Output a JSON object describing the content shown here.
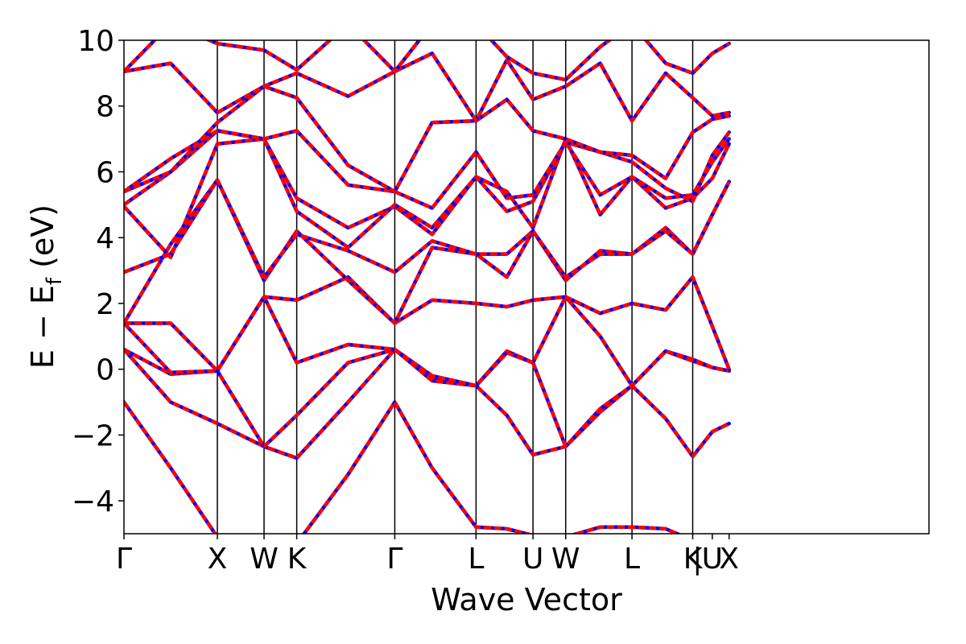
{
  "chart_data": {
    "type": "line",
    "xlabel": "Wave Vector",
    "ylabel": {
      "main": "E − E",
      "subscript": "f",
      "unit": " (eV)"
    },
    "ylim": [
      -5,
      10
    ],
    "y_ticks": [
      -4,
      -2,
      0,
      2,
      4,
      6,
      8,
      10
    ],
    "y_tick_labels": [
      "−4",
      "−2",
      "0",
      "2",
      "4",
      "6",
      "8",
      "10"
    ],
    "xlim": [
      0,
      8.62
    ],
    "x_ticks": [
      {
        "x": 0.0,
        "label": "Γ"
      },
      {
        "x": 1.0,
        "label": "X"
      },
      {
        "x": 1.5,
        "label": "W"
      },
      {
        "x": 1.85,
        "label": "K"
      },
      {
        "x": 2.9,
        "label": "Γ"
      },
      {
        "x": 3.77,
        "label": "L"
      },
      {
        "x": 4.38,
        "label": "U"
      },
      {
        "x": 4.73,
        "label": "W"
      },
      {
        "x": 5.44,
        "label": "L"
      },
      {
        "x": 6.09,
        "label": "K"
      },
      {
        "x": 6.14,
        "label": "|"
      },
      {
        "x": 6.3,
        "label": "U"
      },
      {
        "x": 6.48,
        "label": "X"
      }
    ],
    "high_symmetry_lines": [
      1.0,
      1.5,
      1.85,
      2.9,
      3.77,
      4.38,
      4.73,
      5.44,
      6.09
    ],
    "series_styles": [
      {
        "color": "#0000ff",
        "style": "solid"
      },
      {
        "color": "#ff0000",
        "style": "dashed"
      }
    ],
    "bands": [
      {
        "x": [
          0,
          0.5,
          1.0,
          1.5,
          1.85,
          2.4,
          2.9,
          3.3,
          3.77,
          4.1,
          4.38,
          4.73,
          5.1,
          5.44,
          5.8,
          6.09,
          6.3,
          6.48
        ],
        "y": [
          -1.0,
          -3.0,
          -5.1,
          -6.2,
          -5.3,
          -3.2,
          -1.0,
          -3.0,
          -4.8,
          -4.85,
          -5.05,
          -5.1,
          -4.8,
          -4.8,
          -4.85,
          -5.2,
          -5.3,
          -5.4
        ]
      },
      {
        "x": [
          0,
          0.5,
          1.0,
          1.5,
          1.85,
          2.4,
          2.9,
          3.3,
          3.77,
          4.1,
          4.38,
          4.73,
          5.1,
          5.44,
          5.8,
          6.09,
          6.3,
          6.48
        ],
        "y": [
          0.6,
          -1.0,
          -1.65,
          -2.35,
          -2.7,
          -1.0,
          0.6,
          -0.3,
          -0.5,
          -1.4,
          -2.6,
          -2.35,
          -1.3,
          -0.5,
          -1.5,
          -2.65,
          -1.9,
          -1.65
        ]
      },
      {
        "x": [
          0,
          0.5,
          1.0,
          1.5,
          1.85,
          2.4,
          2.9,
          3.3,
          3.77,
          4.1,
          4.38,
          4.73,
          5.1,
          5.44,
          5.8,
          6.09,
          6.3,
          6.48
        ],
        "y": [
          0.6,
          -0.15,
          -0.05,
          -2.35,
          -1.4,
          0.2,
          0.6,
          -0.35,
          -0.5,
          0.55,
          0.2,
          -2.35,
          -1.2,
          -0.5,
          0.55,
          0.3,
          0.05,
          -0.05
        ]
      },
      {
        "x": [
          0,
          0.5,
          1.0,
          1.5,
          1.85,
          2.4,
          2.9,
          3.3,
          3.77,
          4.1,
          4.38,
          4.73,
          5.1,
          5.44,
          5.8,
          6.09,
          6.3,
          6.48
        ],
        "y": [
          1.4,
          -0.1,
          -0.05,
          2.2,
          0.2,
          0.75,
          0.6,
          -0.2,
          -0.5,
          0.5,
          0.2,
          2.2,
          1.0,
          -0.5,
          0.55,
          0.25,
          0.05,
          -0.05
        ]
      },
      {
        "x": [
          0,
          0.5,
          1.0,
          1.5,
          1.85,
          2.4,
          2.9,
          3.3,
          3.77,
          4.1,
          4.38,
          4.73,
          5.1,
          5.44,
          5.8,
          6.09,
          6.3,
          6.48
        ],
        "y": [
          1.4,
          1.4,
          -0.05,
          2.2,
          2.1,
          2.8,
          1.4,
          2.1,
          2.0,
          1.9,
          2.1,
          2.2,
          1.7,
          2.0,
          1.8,
          2.8,
          1.3,
          0.0
        ]
      },
      {
        "x": [
          0,
          0.5,
          1.0,
          1.5,
          1.85,
          2.4,
          2.9,
          3.3,
          3.77,
          4.1,
          4.38,
          4.73,
          5.1,
          5.44,
          5.8,
          6.09,
          6.3,
          6.48
        ],
        "y": [
          1.4,
          3.8,
          5.75,
          2.7,
          4.2,
          2.7,
          1.4,
          3.7,
          3.5,
          2.8,
          4.2,
          2.7,
          3.6,
          3.5,
          4.3,
          3.5,
          4.7,
          5.7
        ]
      },
      {
        "x": [
          0,
          0.5,
          1.0,
          1.5,
          1.85,
          2.4,
          2.9,
          3.3,
          3.77,
          4.1,
          4.38,
          4.73,
          5.1,
          5.44,
          5.8,
          6.09,
          6.3,
          6.48
        ],
        "y": [
          2.95,
          3.5,
          5.75,
          2.8,
          4.1,
          3.6,
          2.95,
          3.9,
          3.5,
          3.5,
          4.2,
          2.8,
          3.5,
          3.5,
          4.2,
          3.5,
          4.7,
          5.7
        ]
      },
      {
        "x": [
          0,
          0.5,
          1.0,
          1.5,
          1.85,
          2.4,
          2.9,
          3.3,
          3.77,
          4.1,
          4.38,
          4.73,
          5.1,
          5.44,
          5.8,
          6.09,
          6.3,
          6.48
        ],
        "y": [
          4.95,
          3.4,
          6.85,
          7.0,
          5.2,
          4.3,
          4.95,
          4.1,
          5.85,
          5.4,
          4.3,
          7.0,
          4.7,
          5.85,
          4.9,
          5.2,
          5.8,
          6.85
        ]
      },
      {
        "x": [
          0,
          0.5,
          1.0,
          1.5,
          1.85,
          2.4,
          2.9,
          3.3,
          3.77,
          4.1,
          4.38,
          4.73,
          5.1,
          5.44,
          5.8,
          6.09,
          6.3,
          6.48
        ],
        "y": [
          5.0,
          6.0,
          7.25,
          7.0,
          4.8,
          3.7,
          5.0,
          4.3,
          5.85,
          4.8,
          5.1,
          6.9,
          5.3,
          5.85,
          5.2,
          5.3,
          6.3,
          7.0
        ]
      },
      {
        "x": [
          0,
          0.5,
          1.0,
          1.5,
          1.85,
          2.4,
          2.9,
          3.3,
          3.77,
          4.1,
          4.38,
          4.73,
          5.1,
          5.44,
          5.8,
          6.09,
          6.3,
          6.48
        ],
        "y": [
          5.4,
          6.4,
          7.25,
          7.0,
          7.25,
          5.6,
          5.4,
          4.9,
          6.6,
          5.2,
          5.3,
          6.9,
          6.6,
          6.3,
          5.5,
          5.1,
          6.5,
          7.2
        ]
      },
      {
        "x": [
          0,
          0.5,
          1.0,
          1.5,
          1.85,
          2.4,
          2.9,
          3.3,
          3.77,
          4.1,
          4.38,
          4.73,
          5.1,
          5.44,
          5.8,
          6.09,
          6.3,
          6.48
        ],
        "y": [
          5.4,
          6.0,
          7.5,
          8.6,
          8.25,
          6.2,
          5.4,
          7.5,
          7.55,
          8.2,
          7.25,
          7.0,
          6.6,
          6.5,
          5.8,
          7.2,
          7.6,
          7.7
        ]
      },
      {
        "x": [
          0,
          0.5,
          1.0,
          1.5,
          1.85,
          2.4,
          2.9,
          3.3,
          3.77,
          4.1,
          4.38,
          4.73,
          5.1,
          5.44,
          5.8,
          6.09,
          6.3,
          6.48
        ],
        "y": [
          9.05,
          9.3,
          7.8,
          8.6,
          9.0,
          8.3,
          9.05,
          9.6,
          7.55,
          9.4,
          8.2,
          8.6,
          9.3,
          7.55,
          9.0,
          8.25,
          7.7,
          7.8
        ]
      },
      {
        "x": [
          0,
          0.5,
          1.0,
          1.5,
          1.85,
          2.4,
          2.9,
          3.3,
          3.77,
          4.1,
          4.38,
          4.73,
          5.1,
          5.44,
          5.8,
          6.09,
          6.3,
          6.48
        ],
        "y": [
          9.05,
          10.5,
          9.9,
          9.7,
          9.1,
          10.5,
          9.05,
          10.5,
          10.5,
          9.5,
          9.0,
          8.8,
          9.8,
          10.5,
          9.3,
          9.0,
          9.6,
          9.9
        ]
      }
    ]
  }
}
